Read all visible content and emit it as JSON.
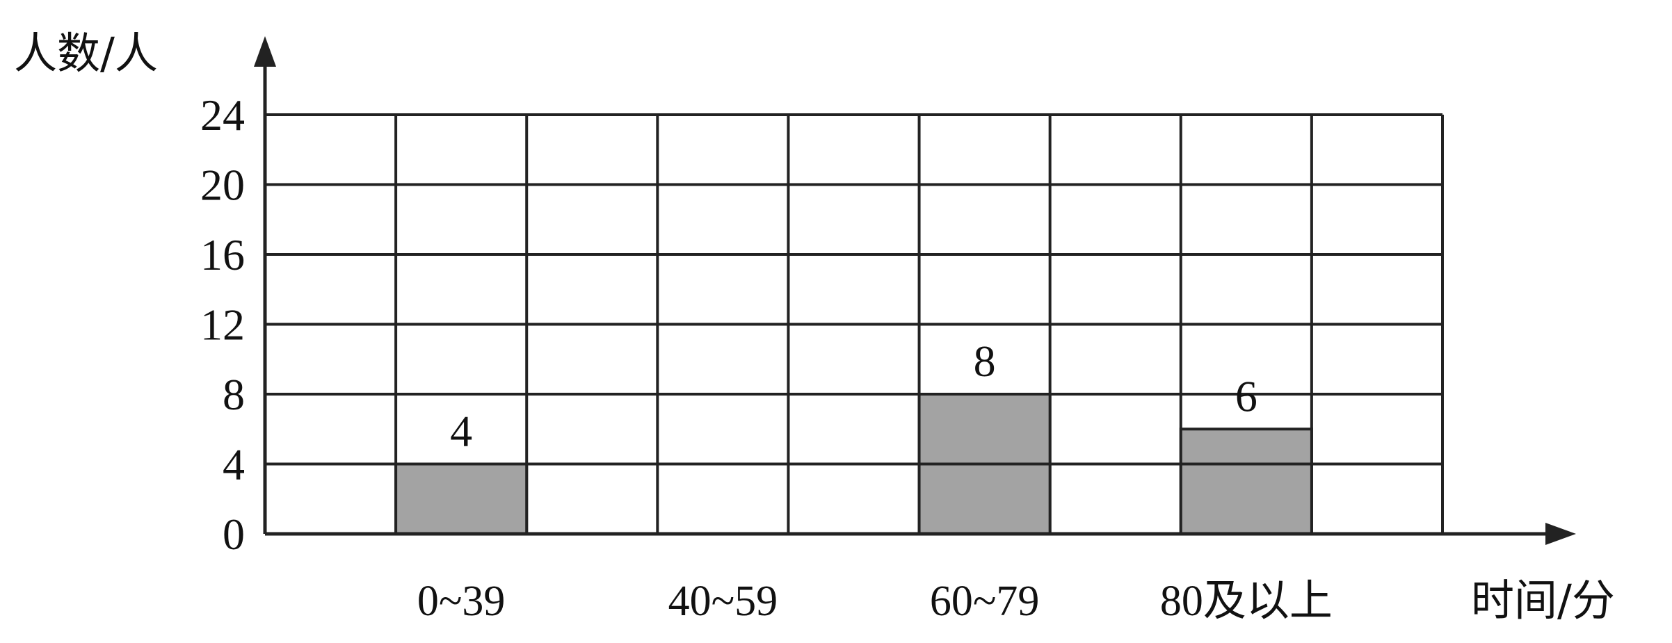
{
  "chart_data": {
    "type": "bar",
    "ylabel": "人数/人",
    "xlabel": "时间/分",
    "yticks": [
      0,
      4,
      8,
      12,
      16,
      20,
      24
    ],
    "ylim": [
      0,
      24
    ],
    "categories": [
      "0~39",
      "40~59",
      "60~79",
      "80及以上"
    ],
    "values": [
      4,
      null,
      8,
      6
    ],
    "data_labels": [
      "4",
      "",
      "8",
      "6"
    ],
    "grid": true,
    "legend": "none"
  },
  "colors": {
    "bar_fill": "#a3a3a3",
    "grid": "#222222",
    "text": "#111111"
  }
}
